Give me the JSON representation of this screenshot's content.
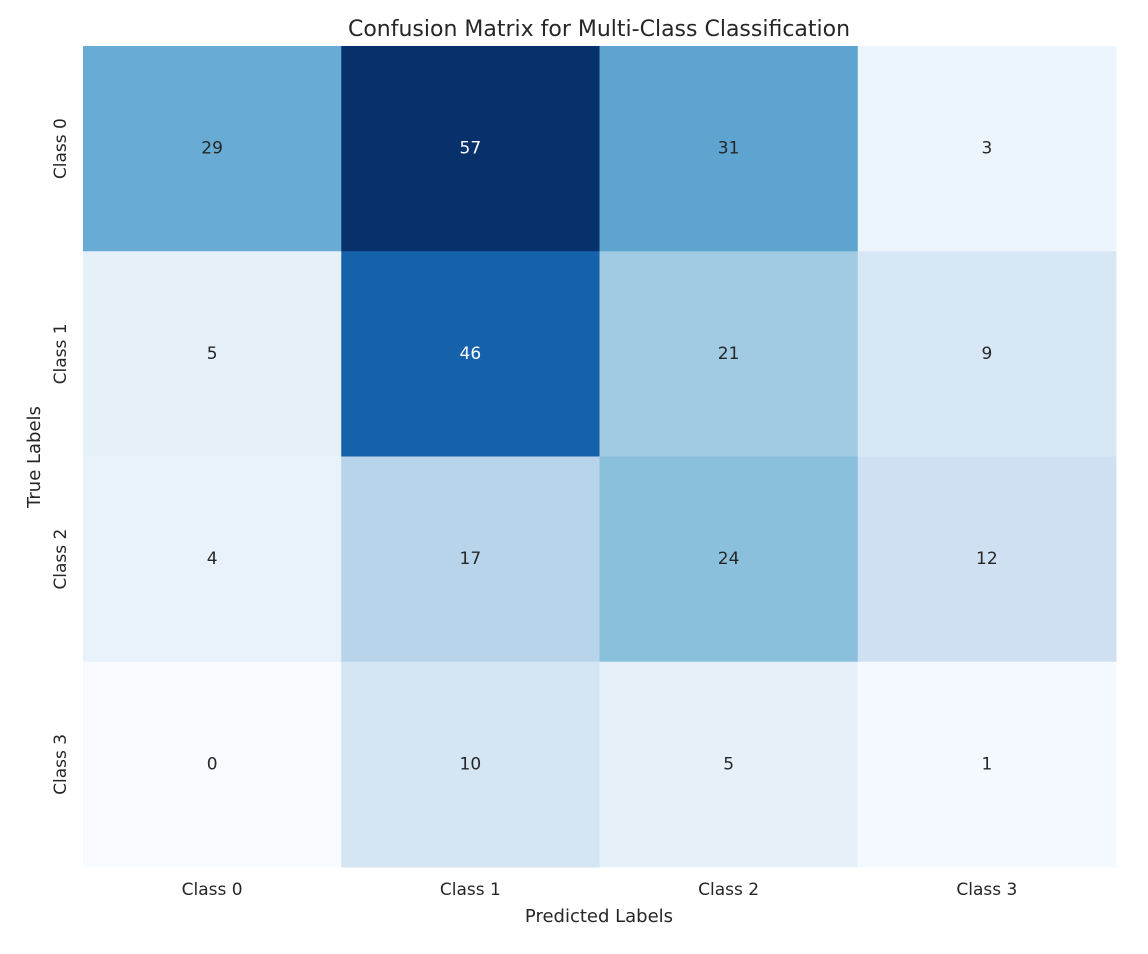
{
  "chart_data": {
    "type": "heatmap",
    "title": "Confusion Matrix for Multi-Class Classification",
    "xlabel": "Predicted Labels",
    "ylabel": "True Labels",
    "x_categories": [
      "Class 0",
      "Class 1",
      "Class 2",
      "Class 3"
    ],
    "y_categories": [
      "Class 0",
      "Class 1",
      "Class 2",
      "Class 3"
    ],
    "values": [
      [
        29,
        57,
        31,
        3
      ],
      [
        5,
        46,
        21,
        9
      ],
      [
        4,
        17,
        24,
        12
      ],
      [
        0,
        10,
        5,
        1
      ]
    ],
    "colormap": "Blues",
    "value_range": [
      0,
      57
    ],
    "grid": false,
    "colorbar": false,
    "annotations": true
  }
}
